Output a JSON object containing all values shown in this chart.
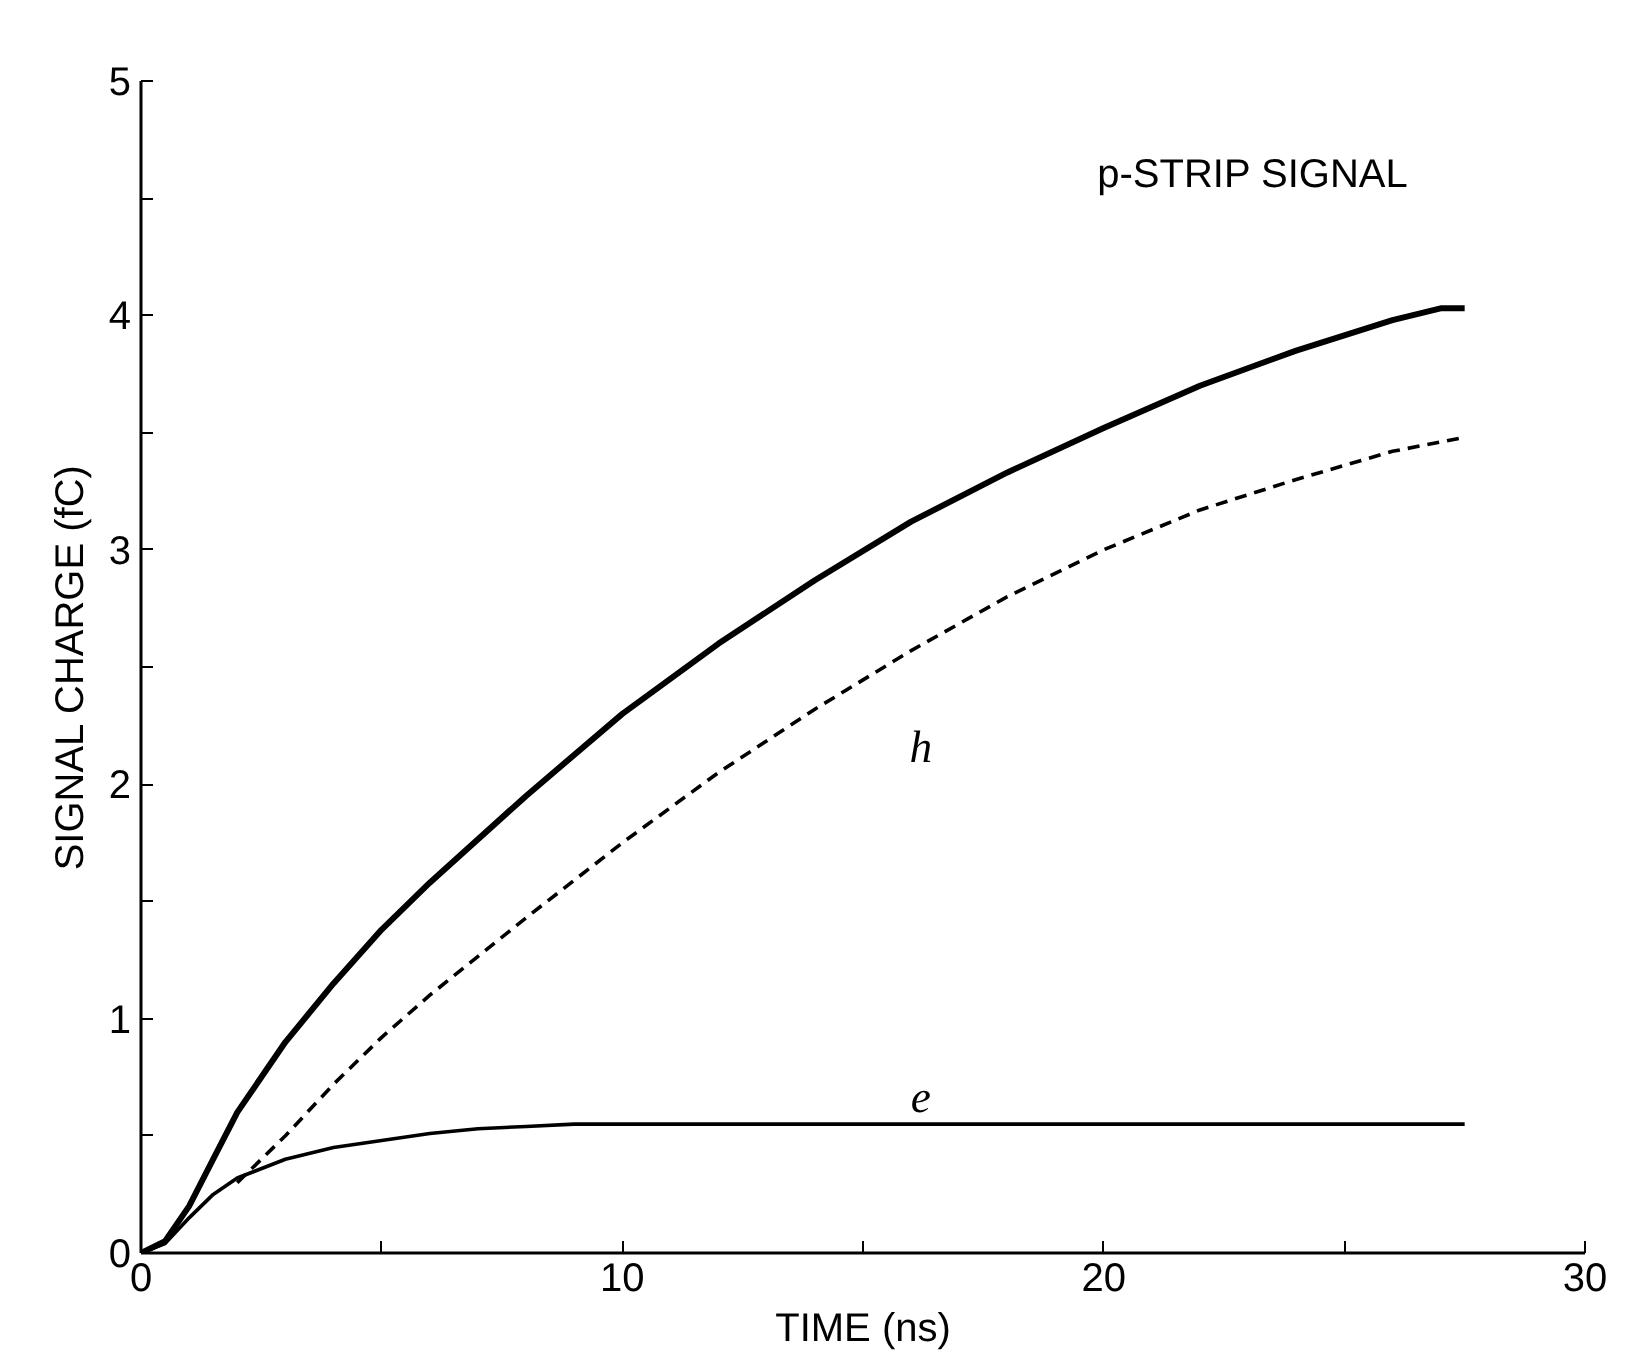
{
  "chart_data": {
    "type": "line",
    "xlabel": "TIME (ns)",
    "ylabel": "SIGNAL CHARGE (fC)",
    "xlim": [
      0,
      30
    ],
    "ylim": [
      0,
      5
    ],
    "xticks": [
      0,
      {
        "value": 5,
        "label": null
      },
      10,
      {
        "value": 15,
        "label": null
      },
      20,
      {
        "value": 25,
        "label": null
      },
      30
    ],
    "yticks": [
      0,
      {
        "value": 0.5,
        "label": null
      },
      1,
      {
        "value": 1.5,
        "label": null
      },
      2,
      {
        "value": 2.5,
        "label": null
      },
      3,
      {
        "value": 3.5,
        "label": null
      },
      4,
      {
        "value": 4.5,
        "label": null
      },
      5
    ],
    "grid": false,
    "series": [
      {
        "color": "#000000",
        "line_style": "solid",
        "x": [
          0,
          0.5,
          1,
          1.5,
          2,
          3,
          4,
          5,
          6,
          8,
          10,
          12,
          14,
          16,
          18,
          20,
          22,
          24,
          26,
          27,
          27.5
        ],
        "values": [
          0,
          0.05,
          0.2,
          0.4,
          0.6,
          0.9,
          1.15,
          1.38,
          1.58,
          1.95,
          2.3,
          2.6,
          2.87,
          3.12,
          3.33,
          3.52,
          3.7,
          3.85,
          3.98,
          4.03,
          4.03
        ]
      },
      {
        "color": "#000000",
        "line_style": "dashed",
        "x": [
          2,
          3,
          4,
          5,
          6,
          8,
          10,
          12,
          14,
          16,
          18,
          20,
          22,
          24,
          26,
          27.5
        ],
        "values": [
          0.3,
          0.5,
          0.72,
          0.92,
          1.1,
          1.43,
          1.75,
          2.05,
          2.32,
          2.57,
          2.8,
          3.0,
          3.17,
          3.3,
          3.42,
          3.48
        ]
      },
      {
        "color": "#000000",
        "line_style": "solid",
        "x": [
          0,
          0.5,
          1,
          1.5,
          2,
          3,
          4,
          5,
          6,
          7,
          8,
          9,
          12,
          16,
          20,
          27.5
        ],
        "values": [
          0,
          0.04,
          0.15,
          0.25,
          0.32,
          0.4,
          0.45,
          0.48,
          0.51,
          0.53,
          0.54,
          0.55,
          0.55,
          0.55,
          0.55,
          0.55
        ]
      }
    ],
    "annotations": [
      "p-STRIP SIGNAL",
      "h",
      "e"
    ]
  }
}
